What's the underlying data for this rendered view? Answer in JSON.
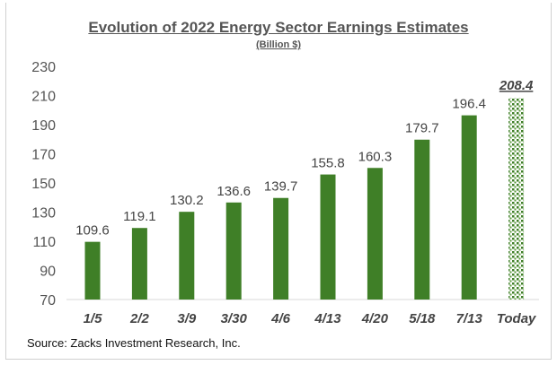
{
  "chart_data": {
    "type": "bar",
    "title": "Evolution of 2022 Energy Sector Earnings Estimates",
    "subtitle": "(Billion $)",
    "categories": [
      "1/5",
      "2/2",
      "3/9",
      "3/30",
      "4/6",
      "4/13",
      "4/20",
      "5/18",
      "7/13",
      "Today"
    ],
    "values": [
      109.6,
      119.1,
      130.2,
      136.6,
      139.7,
      155.8,
      160.3,
      179.7,
      196.4,
      208.4
    ],
    "data_labels": [
      "109.6",
      "119.1",
      "130.2",
      "136.6",
      "139.7",
      "155.8",
      "160.3",
      "179.7",
      "196.4",
      "208.4"
    ],
    "highlight_last": true,
    "ylim": [
      70,
      230
    ],
    "yticks": [
      70,
      90,
      110,
      130,
      150,
      170,
      190,
      210,
      230
    ],
    "grid": false,
    "legend": "none",
    "colors": {
      "bar": "#3f7f27",
      "pattern_dot": "#3f7f27"
    },
    "source": "Source: Zacks Investment Research, Inc."
  }
}
